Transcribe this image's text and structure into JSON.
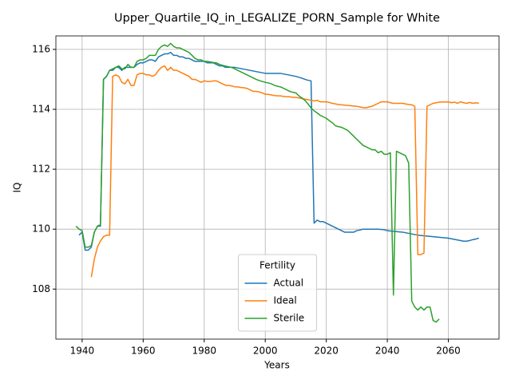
{
  "chart_data": {
    "type": "line",
    "title": "Upper_Quartile_IQ_in_LEGALIZE_PORN_Sample for White",
    "x_label": "Years",
    "y_label": "IQ",
    "legend_title": "Fertility",
    "legend_position": "lower center",
    "grid": true,
    "xlim": [
      1931.4,
      2076.6
    ],
    "xticks": [
      1940,
      1960,
      1980,
      2000,
      2020,
      2040,
      2060
    ],
    "ylim": [
      106.33,
      116.45
    ],
    "yticks": [
      108,
      110,
      112,
      114,
      116
    ],
    "x": [
      1938,
      1939,
      1940,
      1941,
      1942,
      1943,
      1944,
      1945,
      1946,
      1947,
      1948,
      1949,
      1950,
      1951,
      1952,
      1953,
      1954,
      1955,
      1956,
      1957,
      1958,
      1959,
      1960,
      1961,
      1962,
      1963,
      1964,
      1965,
      1966,
      1967,
      1968,
      1969,
      1970,
      1971,
      1972,
      1973,
      1974,
      1975,
      1976,
      1977,
      1978,
      1979,
      1980,
      1981,
      1982,
      1983,
      1984,
      1985,
      1986,
      1987,
      1988,
      1989,
      1990,
      1991,
      1992,
      1993,
      1994,
      1995,
      1996,
      1997,
      1998,
      1999,
      2000,
      2001,
      2002,
      2003,
      2004,
      2005,
      2006,
      2007,
      2008,
      2009,
      2010,
      2011,
      2012,
      2013,
      2014,
      2015,
      2016,
      2017,
      2018,
      2019,
      2020,
      2021,
      2022,
      2023,
      2024,
      2025,
      2026,
      2027,
      2028,
      2029,
      2030,
      2031,
      2032,
      2033,
      2034,
      2035,
      2036,
      2037,
      2038,
      2039,
      2040,
      2041,
      2042,
      2043,
      2044,
      2045,
      2046,
      2047,
      2048,
      2049,
      2050,
      2051,
      2052,
      2053,
      2054,
      2055,
      2056,
      2057,
      2058,
      2059,
      2060,
      2061,
      2062,
      2063,
      2064,
      2065,
      2066,
      2067,
      2068,
      2069,
      2070
    ],
    "series": [
      {
        "name": "Actual",
        "color": "#1f77b4",
        "values": [
          null,
          109.8,
          109.9,
          109.3,
          109.3,
          109.4,
          109.9,
          110.1,
          110.1,
          115.0,
          115.1,
          115.3,
          115.3,
          115.4,
          115.4,
          115.3,
          115.4,
          115.4,
          115.4,
          115.4,
          115.5,
          115.55,
          115.55,
          115.6,
          115.65,
          115.65,
          115.6,
          115.75,
          115.8,
          115.85,
          115.85,
          115.9,
          115.8,
          115.8,
          115.75,
          115.75,
          115.7,
          115.7,
          115.65,
          115.6,
          115.6,
          115.6,
          115.6,
          115.55,
          115.55,
          115.55,
          115.5,
          115.45,
          115.45,
          115.4,
          115.4,
          115.4,
          115.4,
          115.38,
          115.36,
          115.34,
          115.32,
          115.3,
          115.28,
          115.26,
          115.24,
          115.22,
          115.2,
          115.2,
          115.2,
          115.2,
          115.2,
          115.2,
          115.18,
          115.16,
          115.14,
          115.12,
          115.1,
          115.07,
          115.04,
          115.0,
          114.97,
          114.95,
          110.2,
          110.3,
          110.25,
          110.25,
          110.2,
          110.15,
          110.1,
          110.05,
          110.0,
          109.95,
          109.9,
          109.9,
          109.9,
          109.9,
          109.95,
          109.97,
          110.0,
          110.0,
          110.0,
          110.0,
          110.0,
          110.0,
          109.99,
          109.98,
          109.95,
          109.94,
          109.93,
          109.92,
          109.91,
          109.9,
          109.88,
          109.86,
          109.84,
          109.82,
          109.8,
          109.79,
          109.78,
          109.77,
          109.76,
          109.75,
          109.74,
          109.73,
          109.72,
          109.71,
          109.7,
          109.68,
          109.66,
          109.64,
          109.62,
          109.6,
          109.6,
          109.62,
          109.65,
          109.67,
          109.7
        ]
      },
      {
        "name": "Ideal",
        "color": "#ff7f0e",
        "values": [
          null,
          null,
          null,
          null,
          null,
          108.4,
          109.0,
          109.4,
          109.6,
          109.75,
          109.8,
          109.8,
          115.1,
          115.15,
          115.1,
          114.9,
          114.85,
          115.0,
          114.8,
          114.8,
          115.15,
          115.2,
          115.2,
          115.15,
          115.15,
          115.1,
          115.15,
          115.3,
          115.4,
          115.45,
          115.3,
          115.4,
          115.3,
          115.3,
          115.25,
          115.2,
          115.15,
          115.1,
          115.0,
          115.0,
          114.95,
          114.9,
          114.95,
          114.93,
          114.93,
          114.95,
          114.95,
          114.9,
          114.85,
          114.8,
          114.8,
          114.78,
          114.75,
          114.75,
          114.73,
          114.72,
          114.7,
          114.65,
          114.6,
          114.6,
          114.58,
          114.55,
          114.5,
          114.5,
          114.48,
          114.46,
          114.45,
          114.45,
          114.43,
          114.42,
          114.42,
          114.4,
          114.4,
          114.38,
          114.36,
          114.34,
          114.32,
          114.3,
          114.28,
          114.3,
          114.25,
          114.25,
          114.25,
          114.23,
          114.2,
          114.18,
          114.16,
          114.15,
          114.14,
          114.13,
          114.12,
          114.11,
          114.1,
          114.08,
          114.06,
          114.05,
          114.08,
          114.1,
          114.15,
          114.2,
          114.25,
          114.25,
          114.25,
          114.22,
          114.2,
          114.2,
          114.2,
          114.2,
          114.18,
          114.16,
          114.15,
          114.1,
          109.15,
          109.15,
          109.2,
          114.1,
          114.15,
          114.2,
          114.22,
          114.24,
          114.25,
          114.24,
          114.25,
          114.22,
          114.24,
          114.2,
          114.25,
          114.22,
          114.2,
          114.23,
          114.2,
          114.22,
          114.2
        ]
      },
      {
        "name": "Sterile",
        "color": "#2ca02c",
        "values": [
          110.1,
          110.0,
          109.95,
          109.4,
          109.4,
          109.45,
          109.9,
          110.1,
          110.15,
          115.0,
          115.1,
          115.3,
          115.35,
          115.4,
          115.45,
          115.35,
          115.35,
          115.5,
          115.4,
          115.4,
          115.6,
          115.65,
          115.65,
          115.7,
          115.8,
          115.8,
          115.8,
          116.0,
          116.1,
          116.15,
          116.1,
          116.2,
          116.1,
          116.05,
          116.05,
          116.0,
          115.95,
          115.9,
          115.8,
          115.7,
          115.65,
          115.65,
          115.6,
          115.6,
          115.58,
          115.56,
          115.55,
          115.5,
          115.47,
          115.44,
          115.42,
          115.4,
          115.35,
          115.3,
          115.25,
          115.2,
          115.15,
          115.1,
          115.05,
          115.0,
          114.96,
          114.93,
          114.9,
          114.88,
          114.85,
          114.8,
          114.77,
          114.75,
          114.7,
          114.65,
          114.6,
          114.57,
          114.55,
          114.45,
          114.38,
          114.3,
          114.18,
          114.05,
          113.95,
          113.88,
          113.8,
          113.75,
          113.7,
          113.62,
          113.55,
          113.45,
          113.42,
          113.4,
          113.35,
          113.3,
          113.2,
          113.1,
          113.0,
          112.9,
          112.8,
          112.75,
          112.7,
          112.65,
          112.65,
          112.55,
          112.6,
          112.5,
          112.5,
          112.55,
          107.8,
          112.6,
          112.55,
          112.5,
          112.45,
          112.2,
          107.6,
          107.4,
          107.3,
          107.4,
          107.3,
          107.4,
          107.4,
          106.95,
          106.9,
          107.0,
          null,
          null,
          null,
          null,
          null,
          null,
          null,
          null,
          null,
          null,
          null,
          null,
          null
        ]
      }
    ]
  }
}
